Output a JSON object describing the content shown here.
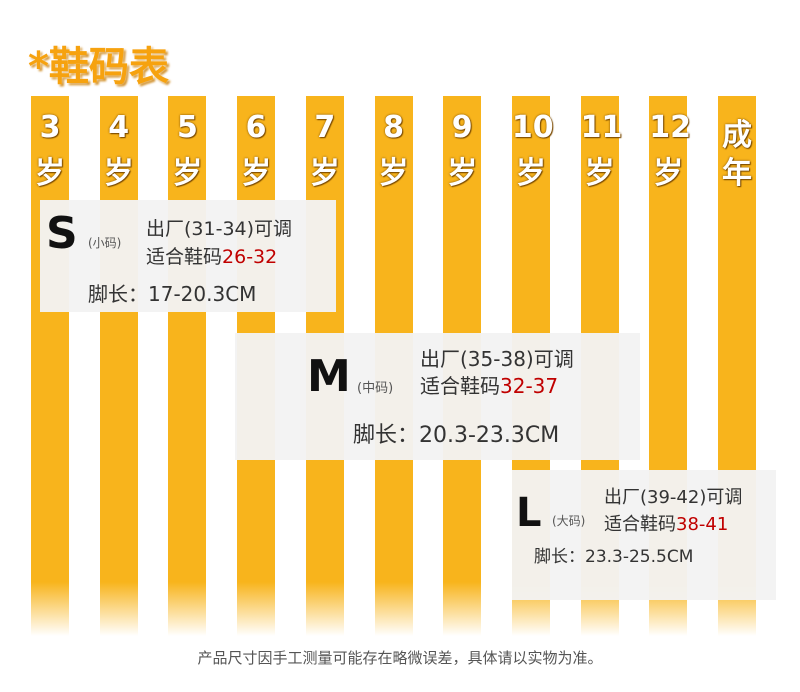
{
  "title": "*鞋码表",
  "columns": [
    {
      "num": "3",
      "unit": "岁"
    },
    {
      "num": "4",
      "unit": "岁"
    },
    {
      "num": "5",
      "unit": "岁"
    },
    {
      "num": "6",
      "unit": "岁"
    },
    {
      "num": "7",
      "unit": "岁"
    },
    {
      "num": "8",
      "unit": "岁"
    },
    {
      "num": "9",
      "unit": "岁"
    },
    {
      "num": "10",
      "unit": "岁"
    },
    {
      "num": "11",
      "unit": "岁"
    },
    {
      "num": "12",
      "unit": "岁"
    },
    {
      "num": "成",
      "unit": "年"
    }
  ],
  "sizes": [
    {
      "size": "S",
      "note": "(小码)",
      "factory": "出厂(31-34)可调",
      "fit_label": "适合鞋码",
      "fit_range": "26-32",
      "foot": "脚长：17-20.3CM"
    },
    {
      "size": "M",
      "note": "(中码)",
      "factory": "出厂(35-38)可调",
      "fit_label": "适合鞋码",
      "fit_range": "32-37",
      "foot": "脚长：20.3-23.3CM"
    },
    {
      "size": "L",
      "note": "(大码)",
      "factory": "出厂(39-42)可调",
      "fit_label": "适合鞋码",
      "fit_range": "38-41",
      "foot": "脚长：23.3-25.5CM"
    }
  ],
  "footer": "产品尺寸因手工测量可能存在略微误差，具体请以实物为准。"
}
